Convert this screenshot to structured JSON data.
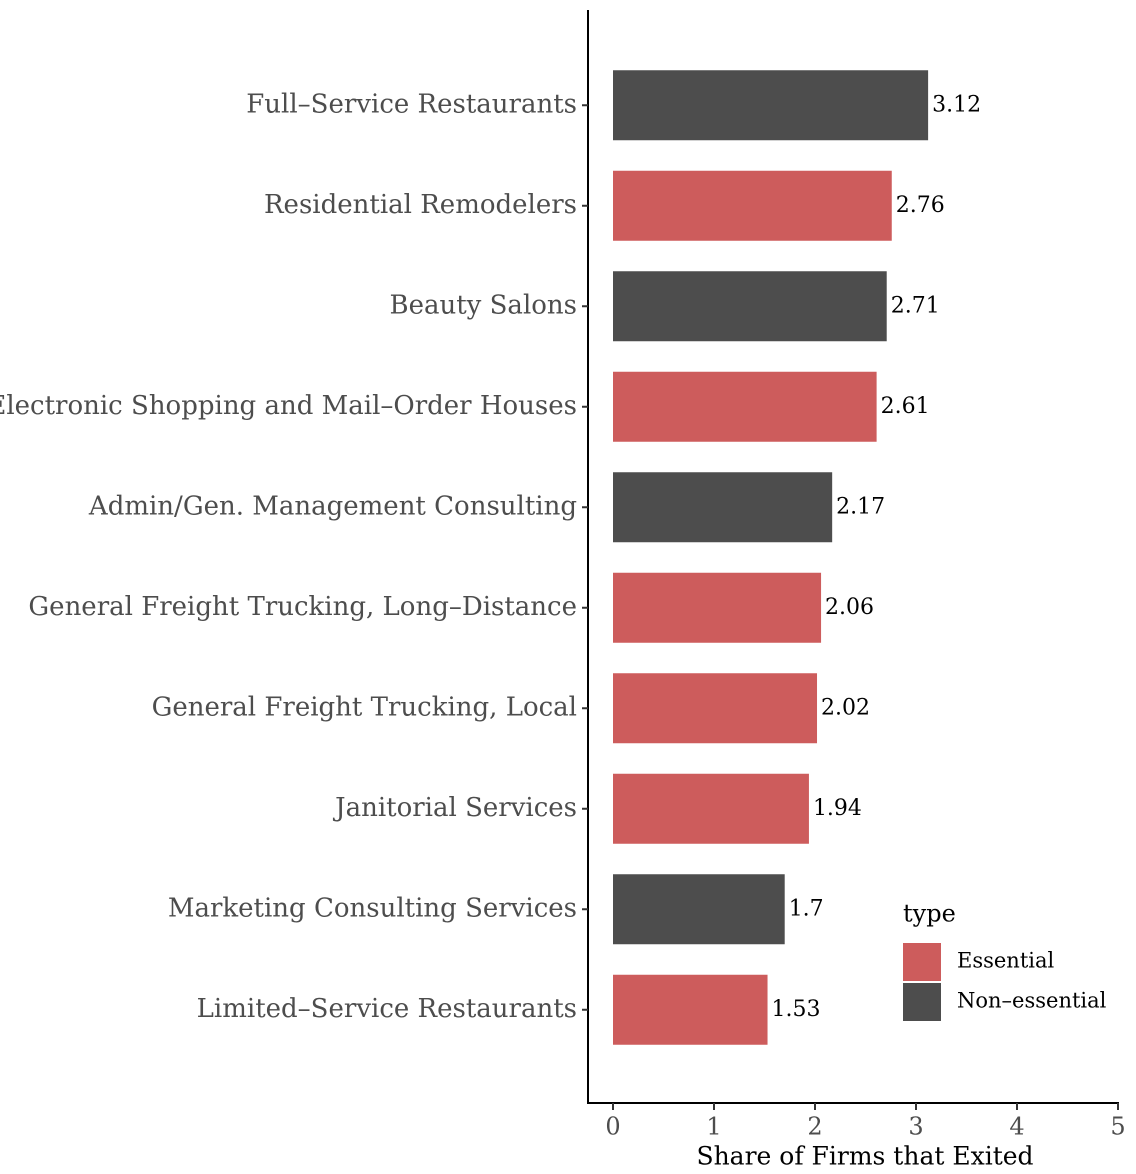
{
  "chart_data": {
    "type": "bar",
    "orientation": "horizontal",
    "x_label": "Share of Firms that Exited",
    "legend_title": "type",
    "categories": [
      "Full–Service Restaurants",
      "Residential Remodelers",
      "Beauty Salons",
      "Electronic Shopping and Mail–Order Houses",
      "Admin/Gen. Management Consulting",
      "General Freight Trucking, Long–Distance",
      "General Freight Trucking, Local",
      "Janitorial Services",
      "Marketing Consulting Services",
      "Limited–Service Restaurants"
    ],
    "series": [
      {
        "name": "Essential",
        "color": "#cd5c5c",
        "values": [
          null,
          2.76,
          null,
          2.61,
          null,
          2.06,
          2.02,
          1.94,
          null,
          1.53
        ]
      },
      {
        "name": "Non–essential",
        "color": "#4d4d4d",
        "values": [
          3.12,
          null,
          2.71,
          null,
          2.17,
          null,
          null,
          null,
          1.7,
          null
        ]
      }
    ],
    "xlim": [
      0,
      5
    ],
    "xticks": [
      0,
      1,
      2,
      3,
      4,
      5
    ],
    "grid": false,
    "legend_position": "bottom-right"
  }
}
